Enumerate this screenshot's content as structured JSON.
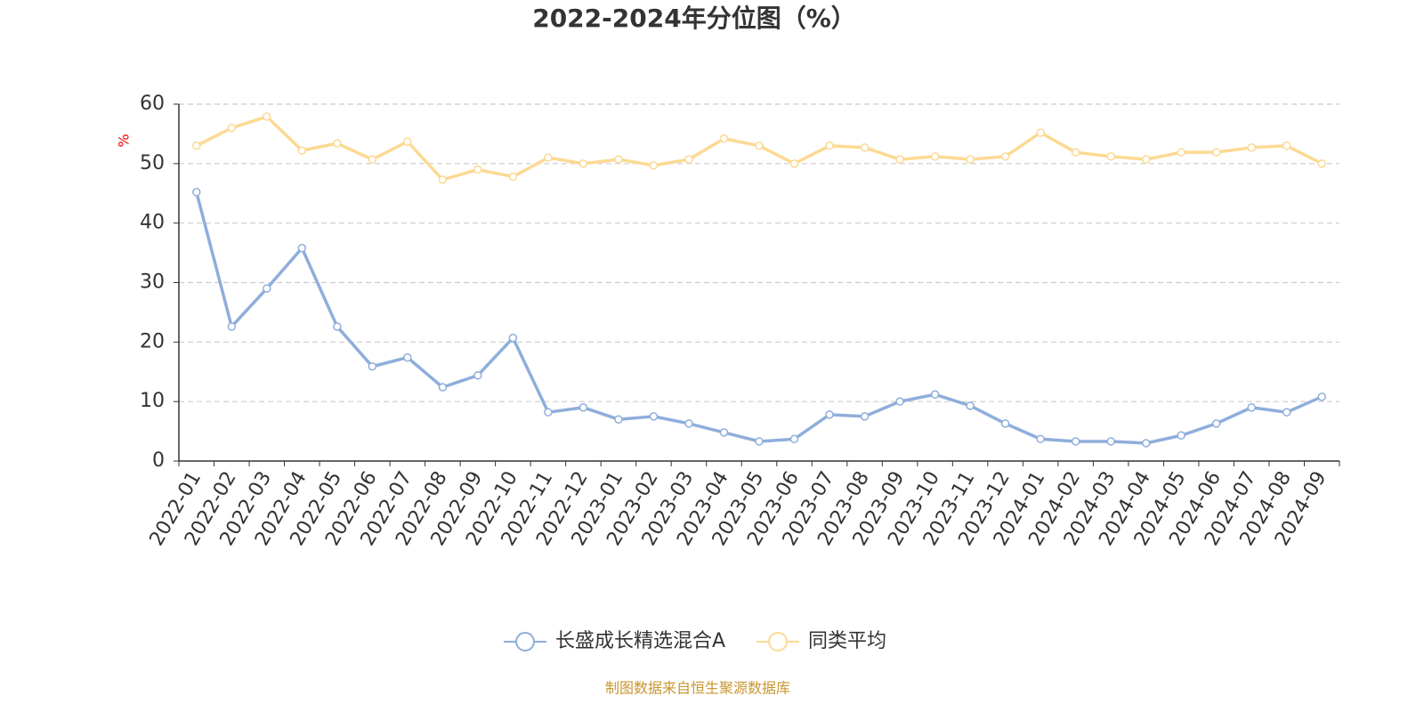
{
  "chart_data": {
    "type": "line",
    "title": "2022-2024年分位图（%）",
    "y_label": "%",
    "source": "制图数据来自恒生聚源数据库",
    "categories": [
      "2022-01",
      "2022-02",
      "2022-03",
      "2022-04",
      "2022-05",
      "2022-06",
      "2022-07",
      "2022-08",
      "2022-09",
      "2022-10",
      "2022-11",
      "2022-12",
      "2023-01",
      "2023-02",
      "2023-03",
      "2023-04",
      "2023-05",
      "2023-06",
      "2023-07",
      "2023-08",
      "2023-09",
      "2023-10",
      "2023-11",
      "2023-12",
      "2024-01",
      "2024-02",
      "2024-03",
      "2024-04",
      "2024-05",
      "2024-06",
      "2024-07",
      "2024-08",
      "2024-09"
    ],
    "series": [
      {
        "name": "长盛成长精选混合A",
        "color": "#8eaedb",
        "values": [
          45.2,
          22.6,
          29.0,
          35.8,
          22.6,
          15.9,
          17.4,
          12.4,
          14.4,
          20.7,
          8.2,
          9.0,
          7.0,
          7.5,
          6.3,
          4.8,
          3.3,
          3.7,
          7.8,
          7.5,
          10.0,
          11.2,
          9.3,
          6.3,
          3.7,
          3.3,
          3.3,
          3.0,
          4.3,
          6.3,
          9.0,
          8.2,
          10.8
        ]
      },
      {
        "name": "同类平均",
        "color": "#fcd993",
        "values": [
          53.0,
          56.0,
          57.9,
          52.2,
          53.4,
          50.7,
          53.7,
          47.3,
          49.0,
          47.8,
          51.0,
          50.0,
          50.7,
          49.7,
          50.7,
          54.2,
          53.0,
          50.0,
          53.0,
          52.7,
          50.7,
          51.2,
          50.7,
          51.2,
          55.2,
          51.9,
          51.2,
          50.7,
          51.9,
          51.9,
          52.7,
          53.0,
          50.0
        ]
      }
    ],
    "ylim": [
      0,
      60
    ],
    "yticks": [
      0,
      10,
      20,
      30,
      40,
      50,
      60
    ],
    "grid": true
  }
}
